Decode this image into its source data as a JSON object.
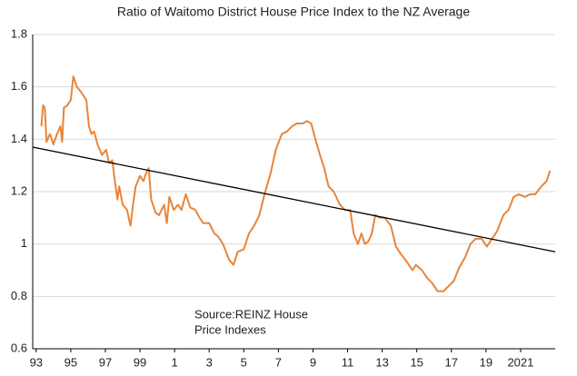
{
  "chart_data": {
    "type": "line",
    "title": "Ratio of Waitomo District House Price Index to the NZ Average",
    "annotation": [
      "Source:REINZ House",
      "Price Indexes"
    ],
    "xlim": [
      1992.8,
      2023
    ],
    "xticks": [
      {
        "value": 1993,
        "label": "93"
      },
      {
        "value": 1995,
        "label": "95"
      },
      {
        "value": 1997,
        "label": "97"
      },
      {
        "value": 1999,
        "label": "99"
      },
      {
        "value": 2001,
        "label": "1"
      },
      {
        "value": 2003,
        "label": "3"
      },
      {
        "value": 2005,
        "label": "5"
      },
      {
        "value": 2007,
        "label": "7"
      },
      {
        "value": 2009,
        "label": "9"
      },
      {
        "value": 2011,
        "label": "11"
      },
      {
        "value": 2013,
        "label": "13"
      },
      {
        "value": 2015,
        "label": "15"
      },
      {
        "value": 2017,
        "label": "17"
      },
      {
        "value": 2019,
        "label": "19"
      },
      2021
    ],
    "ylim": [
      0.6,
      1.8
    ],
    "yticks": [
      0.6,
      0.8,
      1,
      1.2,
      1.4,
      1.6,
      1.8
    ],
    "grid": true,
    "series": [
      {
        "color": "#e8853a",
        "x": [
          1993.3,
          1993.4,
          1993.5,
          1993.6,
          1993.8,
          1994.0,
          1994.2,
          1994.4,
          1994.5,
          1994.6,
          1994.8,
          1995.0,
          1995.15,
          1995.35,
          1995.6,
          1995.9,
          1996.05,
          1996.2,
          1996.35,
          1996.55,
          1996.8,
          1997.05,
          1997.2,
          1997.4,
          1997.55,
          1997.7,
          1997.8,
          1998.0,
          1998.25,
          1998.45,
          1998.6,
          1998.75,
          1999.0,
          1999.2,
          1999.35,
          1999.5,
          1999.65,
          1999.9,
          2000.1,
          2000.4,
          2000.55,
          2000.7,
          2000.95,
          2001.2,
          2001.4,
          2001.65,
          2001.9,
          2002.2,
          2002.45,
          2002.65,
          2003.0,
          2003.3,
          2003.5,
          2003.8,
          2004.15,
          2004.4,
          2004.65,
          2005.0,
          2005.3,
          2005.6,
          2005.9,
          2006.2,
          2006.55,
          2006.85,
          2007.2,
          2007.5,
          2007.8,
          2008.05,
          2008.4,
          2008.65,
          2008.9,
          2009.1,
          2009.4,
          2009.65,
          2009.9,
          2010.2,
          2010.55,
          2010.85,
          2011.15,
          2011.35,
          2011.6,
          2011.8,
          2012.0,
          2012.2,
          2012.4,
          2012.6,
          2012.85,
          2013.15,
          2013.5,
          2013.8,
          2014.1,
          2014.45,
          2014.75,
          2014.95,
          2015.3,
          2015.6,
          2015.9,
          2016.2,
          2016.55,
          2016.85,
          2017.15,
          2017.45,
          2017.8,
          2018.1,
          2018.4,
          2018.75,
          2019.05,
          2019.35,
          2019.65,
          2020.0,
          2020.3,
          2020.6,
          2020.9,
          2021.25,
          2021.55,
          2021.85,
          2022.2,
          2022.5,
          2022.7
        ],
        "values": [
          1.45,
          1.53,
          1.52,
          1.39,
          1.42,
          1.38,
          1.42,
          1.45,
          1.39,
          1.52,
          1.53,
          1.55,
          1.64,
          1.6,
          1.58,
          1.55,
          1.45,
          1.42,
          1.43,
          1.38,
          1.34,
          1.36,
          1.31,
          1.32,
          1.24,
          1.17,
          1.22,
          1.15,
          1.13,
          1.07,
          1.15,
          1.22,
          1.26,
          1.24,
          1.27,
          1.29,
          1.17,
          1.12,
          1.11,
          1.15,
          1.08,
          1.18,
          1.13,
          1.15,
          1.13,
          1.19,
          1.14,
          1.13,
          1.1,
          1.08,
          1.08,
          1.04,
          1.03,
          1.0,
          0.94,
          0.92,
          0.97,
          0.98,
          1.04,
          1.07,
          1.11,
          1.19,
          1.27,
          1.36,
          1.42,
          1.43,
          1.45,
          1.46,
          1.46,
          1.47,
          1.46,
          1.41,
          1.34,
          1.29,
          1.22,
          1.2,
          1.15,
          1.13,
          1.13,
          1.04,
          1.0,
          1.04,
          1.0,
          1.01,
          1.04,
          1.11,
          1.1,
          1.1,
          1.07,
          0.99,
          0.96,
          0.93,
          0.9,
          0.92,
          0.9,
          0.87,
          0.85,
          0.82,
          0.82,
          0.84,
          0.86,
          0.91,
          0.95,
          1.0,
          1.02,
          1.02,
          0.99,
          1.02,
          1.05,
          1.11,
          1.13,
          1.18,
          1.19,
          1.18,
          1.19,
          1.19,
          1.22,
          1.24,
          1.28
        ]
      },
      {
        "color": "#000000",
        "x": [
          1992.8,
          2023
        ],
        "values": [
          1.37,
          0.97
        ]
      }
    ]
  }
}
